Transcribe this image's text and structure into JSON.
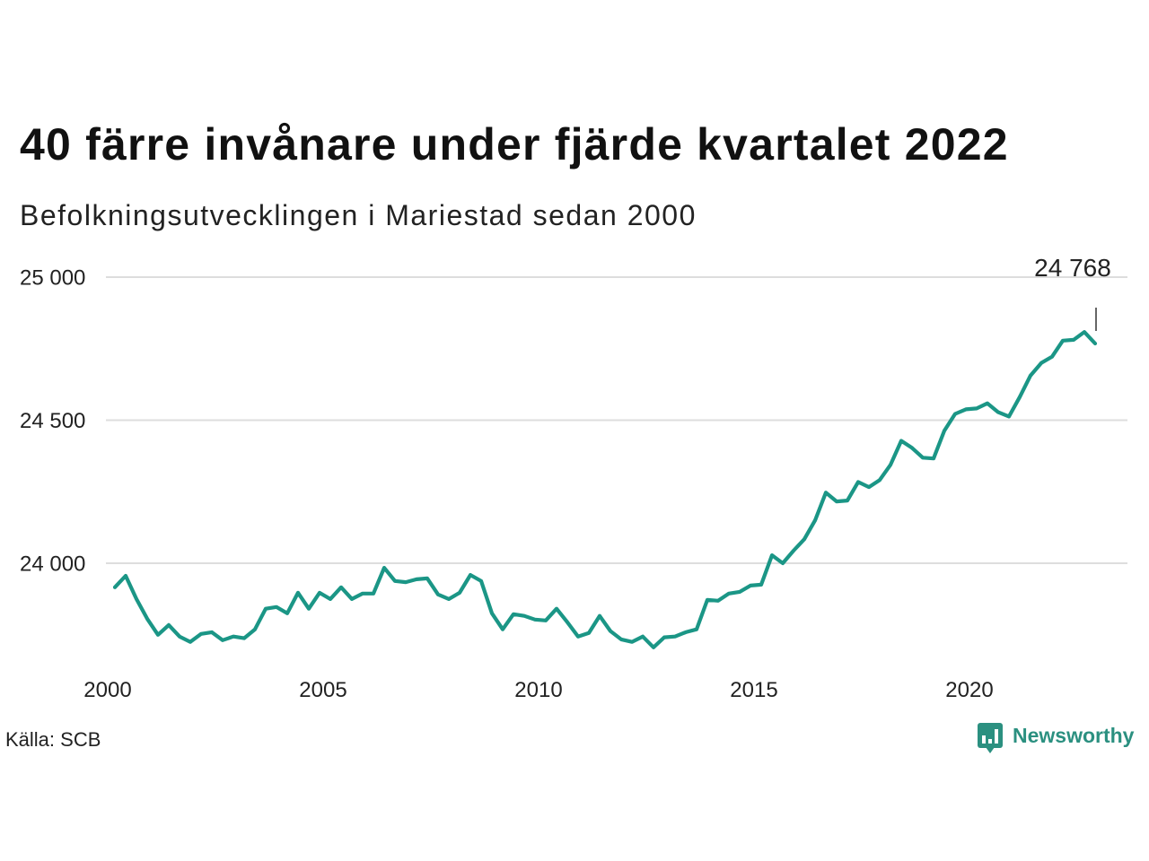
{
  "chart_data": {
    "type": "line",
    "title": "40 färre invånare under fjärde kvartalet 2022",
    "subtitle": "Befolkningsutvecklingen i Mariestad sedan 2000",
    "xlabel": "",
    "ylabel": "",
    "x": [
      "2000-03",
      "2000-06",
      "2000-09",
      "2000-12",
      "2001-03",
      "2001-06",
      "2001-09",
      "2001-12",
      "2002-03",
      "2002-06",
      "2002-09",
      "2002-12",
      "2003-03",
      "2003-06",
      "2003-09",
      "2003-12",
      "2004-03",
      "2004-06",
      "2004-09",
      "2004-12",
      "2005-03",
      "2005-06",
      "2005-09",
      "2005-12",
      "2006-03",
      "2006-06",
      "2006-09",
      "2006-12",
      "2007-03",
      "2007-06",
      "2007-09",
      "2007-12",
      "2008-03",
      "2008-06",
      "2008-09",
      "2008-12",
      "2009-03",
      "2009-06",
      "2009-09",
      "2009-12",
      "2010-03",
      "2010-06",
      "2010-09",
      "2010-12",
      "2011-03",
      "2011-06",
      "2011-09",
      "2011-12",
      "2012-03",
      "2012-06",
      "2012-09",
      "2012-12",
      "2013-03",
      "2013-06",
      "2013-09",
      "2013-12",
      "2014-03",
      "2014-06",
      "2014-09",
      "2014-12",
      "2015-03",
      "2015-06",
      "2015-09",
      "2015-12",
      "2016-03",
      "2016-06",
      "2016-09",
      "2016-12",
      "2017-03",
      "2017-06",
      "2017-09",
      "2017-12",
      "2018-03",
      "2018-06",
      "2018-09",
      "2018-12",
      "2019-03",
      "2019-06",
      "2019-09",
      "2019-12",
      "2020-03",
      "2020-06",
      "2020-09",
      "2020-12",
      "2021-03",
      "2021-06",
      "2021-09",
      "2021-12",
      "2022-03",
      "2022-06",
      "2022-09",
      "2022-12"
    ],
    "series": [
      {
        "values": [
          23916,
          23956,
          23875,
          23806,
          23750,
          23784,
          23744,
          23725,
          23753,
          23759,
          23731,
          23744,
          23738,
          23769,
          23841,
          23847,
          23825,
          23897,
          23841,
          23897,
          23875,
          23916,
          23875,
          23894,
          23894,
          23984,
          23938,
          23934,
          23944,
          23947,
          23891,
          23875,
          23897,
          23959,
          23938,
          23825,
          23769,
          23822,
          23816,
          23803,
          23800,
          23841,
          23794,
          23744,
          23756,
          23816,
          23763,
          23734,
          23725,
          23744,
          23706,
          23741,
          23744,
          23759,
          23769,
          23872,
          23869,
          23894,
          23900,
          23922,
          23925,
          24028,
          24000,
          24044,
          24084,
          24150,
          24247,
          24216,
          24219,
          24284,
          24266,
          24291,
          24344,
          24428,
          24403,
          24369,
          24366,
          24463,
          24522,
          24538,
          24541,
          24559,
          24528,
          24513,
          24581,
          24656,
          24700,
          24722,
          24778,
          24781,
          24808,
          24768
        ]
      }
    ],
    "x_ticks": [
      "2000",
      "2005",
      "2010",
      "2015",
      "2020"
    ],
    "y_ticks": [
      {
        "value": 24000,
        "label": "24 000"
      },
      {
        "value": 24500,
        "label": "24 500"
      },
      {
        "value": 25000,
        "label": "25 000"
      }
    ],
    "xlim": [
      2000,
      2023.7
    ],
    "ylim": [
      23700,
      25000
    ],
    "grid": true,
    "legend": "none",
    "annotation": {
      "label": "24 768",
      "x": "2022-12",
      "y": 24768
    },
    "line_color": "#1b9686",
    "grid_color": "#dddddd"
  },
  "source": "Källa: SCB",
  "brand": {
    "name": "Newsworthy",
    "icon": "newsworthy-chart-bubble-icon",
    "color": "#2b9080"
  }
}
